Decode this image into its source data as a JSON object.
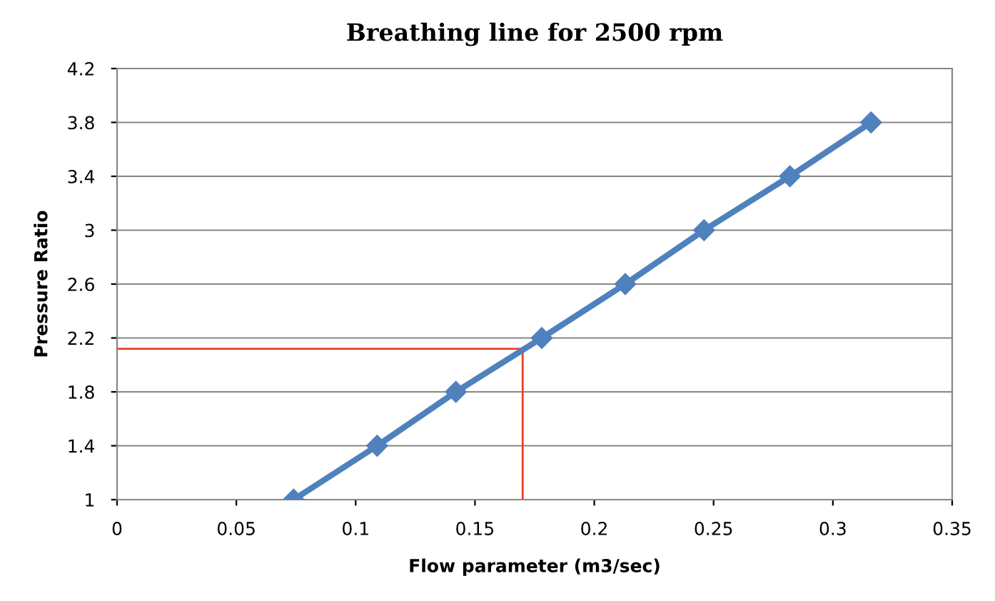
{
  "chart_data": {
    "type": "line",
    "title": "Breathing line for 2500 rpm",
    "xlabel": "Flow parameter (m3/sec)",
    "ylabel": "Pressure Ratio",
    "series": [
      {
        "color": "#4f81bd",
        "x": [
          0.074,
          0.109,
          0.142,
          0.178,
          0.213,
          0.246,
          0.282,
          0.316
        ],
        "values": [
          1,
          1.4,
          1.8,
          2.2,
          2.6,
          3,
          3.4,
          3.8
        ],
        "marker": "diamond"
      },
      {
        "color": "#e8412c",
        "x": [
          0,
          0.17,
          0.17
        ],
        "values": [
          2.12,
          2.12,
          1
        ],
        "marker": "none"
      }
    ],
    "xlim": [
      0,
      0.35
    ],
    "xticks": [
      0,
      0.05,
      0.1,
      0.15,
      0.2,
      0.25,
      0.3,
      0.35
    ],
    "ylim": [
      1,
      4.2
    ],
    "yticks": [
      1,
      1.4,
      1.8,
      2.2,
      2.6,
      3,
      3.4,
      3.8,
      4.2
    ],
    "grid": "y",
    "legend": false
  }
}
